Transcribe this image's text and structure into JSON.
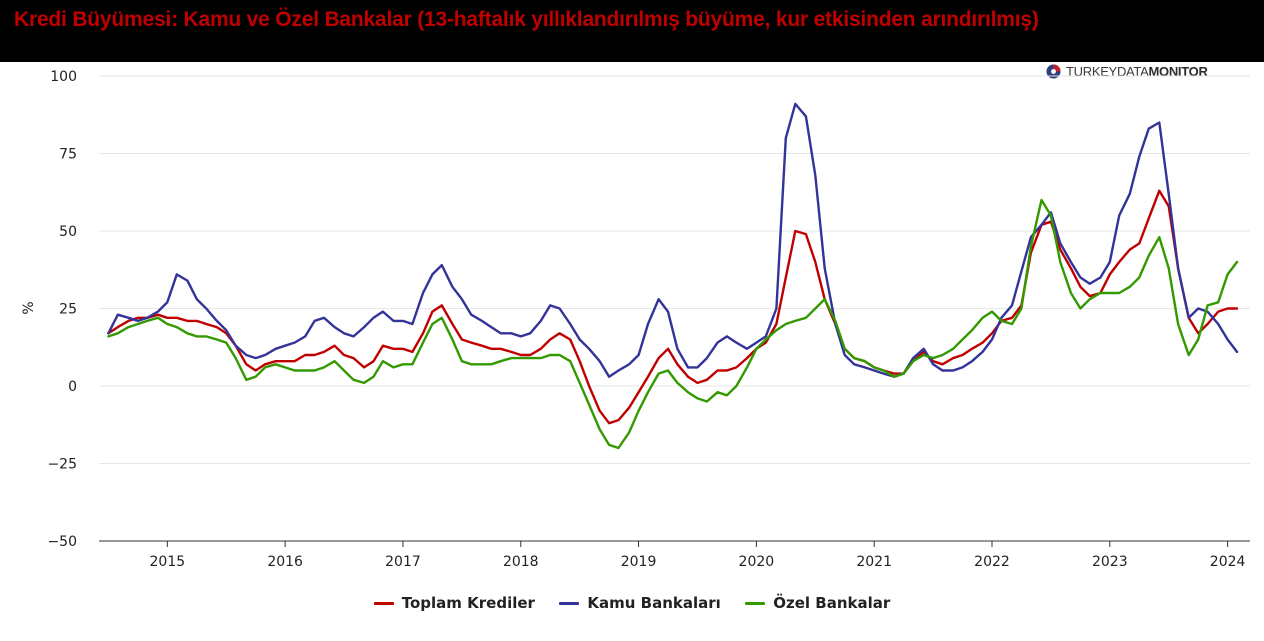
{
  "title": "Kredi Büyümesi: Kamu ve Özel Bankalar (13-haftalık yıllıklandırılmış büyüme, kur etkisinden arındırılmış)",
  "logo": {
    "text_light": "TURKEY",
    "text_medium": "DATA",
    "text_bold": "MONITOR",
    "icon": "turkeydatamonitor-logo-icon"
  },
  "colors": {
    "title": "#c00000",
    "header_bg": "#000000",
    "toplam": "#c00000",
    "kamu": "#333399",
    "ozel": "#339900"
  },
  "chart_data": {
    "type": "line",
    "title": "Kredi Büyümesi: Kamu ve Özel Bankalar (13-haftalık yıllıklandırılmış büyüme, kur etkisinden arındırılmış)",
    "xlabel": "",
    "ylabel": "%",
    "ylim": [
      -50,
      100
    ],
    "xlim": [
      2014.42,
      2024.19
    ],
    "yticks": [
      "100",
      "75",
      "50",
      "25",
      "0",
      "−25",
      "−50"
    ],
    "ytick_values": [
      100,
      75,
      50,
      25,
      0,
      -25,
      -50
    ],
    "xticks": [
      "2015",
      "2016",
      "2017",
      "2018",
      "2019",
      "2020",
      "2021",
      "2022",
      "2023",
      "2024"
    ],
    "xtick_values": [
      2015,
      2016,
      2017,
      2018,
      2019,
      2020,
      2021,
      2022,
      2023,
      2024
    ],
    "grid": "horizontal",
    "legend": "bottom-center",
    "x": [
      2014.5,
      2014.58,
      2014.67,
      2014.75,
      2014.83,
      2014.92,
      2015.0,
      2015.08,
      2015.17,
      2015.25,
      2015.33,
      2015.42,
      2015.5,
      2015.58,
      2015.67,
      2015.75,
      2015.83,
      2015.92,
      2016.0,
      2016.08,
      2016.17,
      2016.25,
      2016.33,
      2016.42,
      2016.5,
      2016.58,
      2016.67,
      2016.75,
      2016.83,
      2016.92,
      2017.0,
      2017.08,
      2017.17,
      2017.25,
      2017.33,
      2017.42,
      2017.5,
      2017.58,
      2017.67,
      2017.75,
      2017.83,
      2017.92,
      2018.0,
      2018.08,
      2018.17,
      2018.25,
      2018.33,
      2018.42,
      2018.5,
      2018.58,
      2018.67,
      2018.75,
      2018.83,
      2018.92,
      2019.0,
      2019.08,
      2019.17,
      2019.25,
      2019.33,
      2019.42,
      2019.5,
      2019.58,
      2019.67,
      2019.75,
      2019.83,
      2019.92,
      2020.0,
      2020.08,
      2020.17,
      2020.25,
      2020.33,
      2020.42,
      2020.5,
      2020.58,
      2020.67,
      2020.75,
      2020.83,
      2020.92,
      2021.0,
      2021.08,
      2021.17,
      2021.25,
      2021.33,
      2021.42,
      2021.5,
      2021.58,
      2021.67,
      2021.75,
      2021.83,
      2021.92,
      2022.0,
      2022.08,
      2022.17,
      2022.25,
      2022.33,
      2022.42,
      2022.5,
      2022.58,
      2022.67,
      2022.75,
      2022.83,
      2022.92,
      2023.0,
      2023.08,
      2023.17,
      2023.25,
      2023.33,
      2023.42,
      2023.5,
      2023.58,
      2023.67,
      2023.75,
      2023.83,
      2023.92,
      2024.0,
      2024.08
    ],
    "series": [
      {
        "name": "Toplam Krediler",
        "color": "#c00000",
        "values": [
          17,
          19,
          21,
          22,
          22,
          23,
          22,
          22,
          21,
          21,
          20,
          19,
          17,
          13,
          7,
          5,
          7,
          8,
          8,
          8,
          10,
          10,
          11,
          13,
          10,
          9,
          6,
          8,
          13,
          12,
          12,
          11,
          17,
          24,
          26,
          20,
          15,
          14,
          13,
          12,
          12,
          11,
          10,
          10,
          12,
          15,
          17,
          15,
          8,
          0,
          -8,
          -12,
          -11,
          -7,
          -2,
          3,
          9,
          12,
          7,
          3,
          1,
          2,
          5,
          5,
          6,
          9,
          12,
          14,
          20,
          35,
          50,
          49,
          40,
          28,
          20,
          12,
          9,
          8,
          6,
          5,
          4,
          4,
          8,
          11,
          8,
          7,
          9,
          10,
          12,
          14,
          17,
          21,
          22,
          26,
          43,
          52,
          53,
          44,
          38,
          32,
          29,
          30,
          36,
          40,
          44,
          46,
          54,
          63,
          58,
          38,
          22,
          17,
          20,
          24,
          25,
          25
        ]
      },
      {
        "name": "Kamu Bankaları",
        "color": "#333399",
        "values": [
          17,
          23,
          22,
          21,
          22,
          24,
          27,
          36,
          34,
          28,
          25,
          21,
          18,
          13,
          10,
          9,
          10,
          12,
          13,
          14,
          16,
          21,
          22,
          19,
          17,
          16,
          19,
          22,
          24,
          21,
          21,
          20,
          30,
          36,
          39,
          32,
          28,
          23,
          21,
          19,
          17,
          17,
          16,
          17,
          21,
          26,
          25,
          20,
          15,
          12,
          8,
          3,
          5,
          7,
          10,
          20,
          28,
          24,
          12,
          6,
          6,
          9,
          14,
          16,
          14,
          12,
          14,
          16,
          25,
          80,
          91,
          87,
          68,
          38,
          20,
          10,
          7,
          6,
          5,
          4,
          3,
          4,
          9,
          12,
          7,
          5,
          5,
          6,
          8,
          11,
          15,
          22,
          26,
          37,
          48,
          52,
          56,
          46,
          40,
          35,
          33,
          35,
          40,
          55,
          62,
          74,
          83,
          85,
          62,
          38,
          22,
          25,
          24,
          20,
          15,
          11
        ]
      },
      {
        "name": "Özel Bankalar",
        "color": "#339900",
        "values": [
          16,
          17,
          19,
          20,
          21,
          22,
          20,
          19,
          17,
          16,
          16,
          15,
          14,
          9,
          2,
          3,
          6,
          7,
          6,
          5,
          5,
          5,
          6,
          8,
          5,
          2,
          1,
          3,
          8,
          6,
          7,
          7,
          14,
          20,
          22,
          15,
          8,
          7,
          7,
          7,
          8,
          9,
          9,
          9,
          9,
          10,
          10,
          8,
          1,
          -6,
          -14,
          -19,
          -20,
          -15,
          -8,
          -2,
          4,
          5,
          1,
          -2,
          -4,
          -5,
          -2,
          -3,
          0,
          6,
          12,
          15,
          18,
          20,
          21,
          22,
          25,
          28,
          21,
          12,
          9,
          8,
          6,
          5,
          3,
          4,
          8,
          10,
          9,
          10,
          12,
          15,
          18,
          22,
          24,
          21,
          20,
          25,
          45,
          60,
          55,
          40,
          30,
          25,
          28,
          30,
          30,
          30,
          32,
          35,
          42,
          48,
          38,
          20,
          10,
          15,
          26,
          27,
          36,
          40
        ]
      }
    ]
  }
}
